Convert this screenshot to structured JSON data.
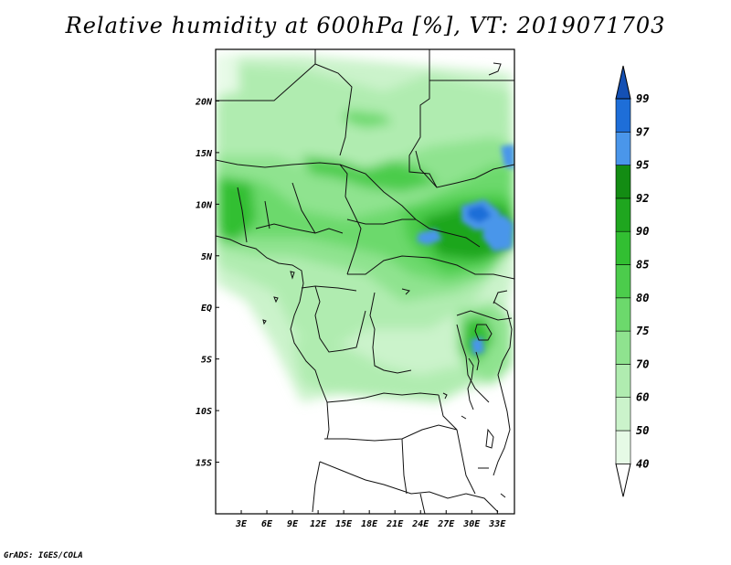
{
  "title": "Relative humidity at 600hPa [%], VT: 2019071703",
  "credit": "GrADS: IGES/COLA",
  "map": {
    "lon_range": [
      0,
      35
    ],
    "lat_range": [
      -20,
      25
    ],
    "lon_ticks": [
      {
        "value": 3,
        "label": "3E"
      },
      {
        "value": 6,
        "label": "6E"
      },
      {
        "value": 9,
        "label": "9E"
      },
      {
        "value": 12,
        "label": "12E"
      },
      {
        "value": 15,
        "label": "15E"
      },
      {
        "value": 18,
        "label": "18E"
      },
      {
        "value": 21,
        "label": "21E"
      },
      {
        "value": 24,
        "label": "24E"
      },
      {
        "value": 27,
        "label": "27E"
      },
      {
        "value": 30,
        "label": "30E"
      },
      {
        "value": 33,
        "label": "33E"
      }
    ],
    "lat_ticks": [
      {
        "value": 20,
        "label": "20N"
      },
      {
        "value": 15,
        "label": "15N"
      },
      {
        "value": 10,
        "label": "10N"
      },
      {
        "value": 5,
        "label": "5N"
      },
      {
        "value": 0,
        "label": "EQ"
      },
      {
        "value": -5,
        "label": "5S"
      },
      {
        "value": -10,
        "label": "10S"
      },
      {
        "value": -15,
        "label": "15S"
      }
    ]
  },
  "colorbar": {
    "levels": [
      "40",
      "50",
      "60",
      "70",
      "75",
      "80",
      "85",
      "90",
      "92",
      "95",
      "97",
      "99"
    ],
    "colors": [
      "#ffffff",
      "#e6fae6",
      "#cbf3cb",
      "#b0ecb0",
      "#8fe38f",
      "#6cd96c",
      "#4ccc4c",
      "#32bf32",
      "#1fa61f",
      "#138c13",
      "#4a96ea",
      "#1e6ed8",
      "#1450b4"
    ]
  }
}
